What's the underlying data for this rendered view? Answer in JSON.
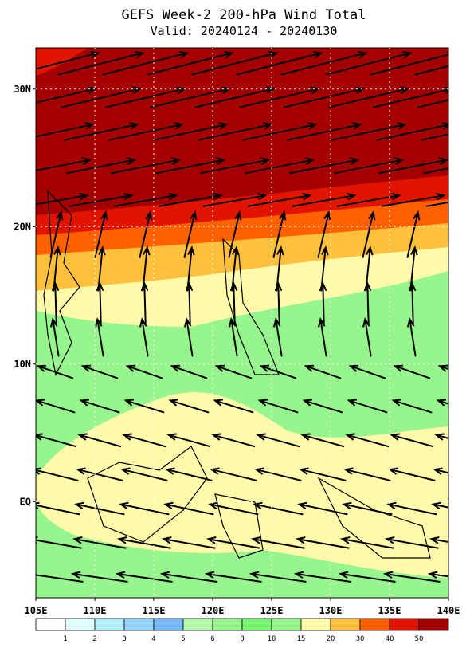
{
  "title": "GEFS Week-2 200-hPa Wind Total",
  "subtitle": "Valid: 20240124 - 20240130",
  "map": {
    "xlim": [
      105,
      140
    ],
    "ylim": [
      -7,
      33
    ],
    "xticks": [
      {
        "value": 105,
        "label": "105E"
      },
      {
        "value": 110,
        "label": "110E"
      },
      {
        "value": 115,
        "label": "115E"
      },
      {
        "value": 120,
        "label": "120E"
      },
      {
        "value": 125,
        "label": "125E"
      },
      {
        "value": 130,
        "label": "130E"
      },
      {
        "value": 135,
        "label": "135E"
      },
      {
        "value": 140,
        "label": "140E"
      }
    ],
    "yticks": [
      {
        "value": 0,
        "label": "EQ"
      },
      {
        "value": 10,
        "label": "10N"
      },
      {
        "value": 20,
        "label": "20N"
      },
      {
        "value": 30,
        "label": "30N"
      }
    ],
    "grid": true
  },
  "colorbar": {
    "levels": [
      1,
      2,
      3,
      4,
      5,
      6,
      8,
      10,
      15,
      20,
      30,
      40,
      50
    ],
    "colors": [
      "#ffffff",
      "#e1ffff",
      "#b4f0fa",
      "#96d2fa",
      "#78b9fa",
      "#b4faaa",
      "#96f58c",
      "#78f573",
      "#96f58c",
      "#fffaaa",
      "#ffc03c",
      "#ff6000",
      "#e11400",
      "#a50000"
    ]
  }
}
